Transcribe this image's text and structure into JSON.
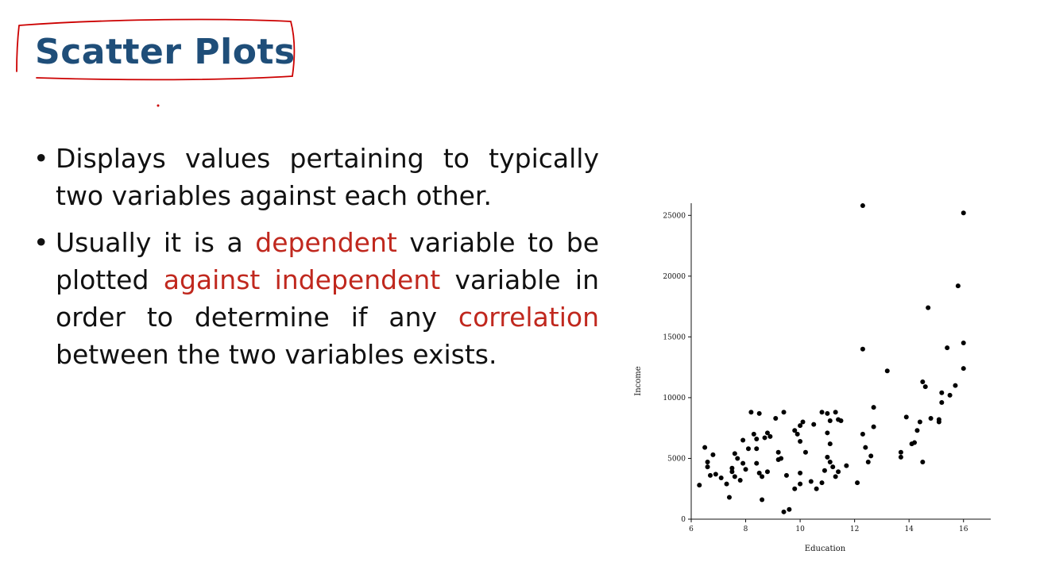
{
  "slide": {
    "title": "Scatter Plots"
  },
  "bullets": {
    "b1": {
      "text": "Displays values pertaining to typically two variables against each other."
    },
    "b2": {
      "t1": "Usually it is a ",
      "h1": "dependent",
      "t2": " variable to be plotted ",
      "h2": "against independent",
      "t3": " variable in order to determine if any ",
      "h3": "correlation",
      "t4": " between the two variables exists."
    }
  },
  "colors": {
    "title": "#1f4e79",
    "highlight": "#c0281e",
    "annotation": "#cc0000",
    "points": "#000000"
  },
  "chart_data": {
    "type": "scatter",
    "xlabel": "Education",
    "ylabel": "Income",
    "xlim": [
      6,
      17
    ],
    "ylim": [
      0,
      26000
    ],
    "xticks": [
      6,
      8,
      10,
      12,
      14,
      16
    ],
    "yticks": [
      0,
      5000,
      10000,
      15000,
      20000,
      25000
    ],
    "grid": false,
    "points": [
      [
        6.3,
        2800
      ],
      [
        6.5,
        5900
      ],
      [
        6.6,
        4700
      ],
      [
        6.6,
        4300
      ],
      [
        6.8,
        5300
      ],
      [
        6.7,
        3600
      ],
      [
        6.9,
        3700
      ],
      [
        7.1,
        3400
      ],
      [
        7.3,
        2900
      ],
      [
        7.4,
        1800
      ],
      [
        7.5,
        4200
      ],
      [
        7.5,
        3900
      ],
      [
        7.6,
        5400
      ],
      [
        7.6,
        3500
      ],
      [
        7.7,
        5000
      ],
      [
        7.8,
        3200
      ],
      [
        7.9,
        6500
      ],
      [
        7.9,
        4600
      ],
      [
        8.0,
        4100
      ],
      [
        8.1,
        5800
      ],
      [
        8.2,
        8800
      ],
      [
        8.3,
        7000
      ],
      [
        8.4,
        6600
      ],
      [
        8.4,
        5800
      ],
      [
        8.4,
        4600
      ],
      [
        8.5,
        8700
      ],
      [
        8.5,
        3800
      ],
      [
        8.6,
        3500
      ],
      [
        8.6,
        1600
      ],
      [
        8.7,
        6700
      ],
      [
        8.8,
        7100
      ],
      [
        8.8,
        3900
      ],
      [
        8.9,
        6800
      ],
      [
        9.1,
        8300
      ],
      [
        9.2,
        5500
      ],
      [
        9.2,
        4900
      ],
      [
        9.3,
        5000
      ],
      [
        9.4,
        8800
      ],
      [
        9.4,
        600
      ],
      [
        9.5,
        3600
      ],
      [
        9.6,
        800
      ],
      [
        9.8,
        7300
      ],
      [
        9.8,
        2500
      ],
      [
        9.9,
        7000
      ],
      [
        10.0,
        6400
      ],
      [
        10.0,
        7700
      ],
      [
        10.0,
        3800
      ],
      [
        10.0,
        2900
      ],
      [
        10.1,
        8000
      ],
      [
        10.2,
        5500
      ],
      [
        10.4,
        3100
      ],
      [
        10.5,
        7800
      ],
      [
        10.6,
        2500
      ],
      [
        10.8,
        8800
      ],
      [
        10.8,
        3000
      ],
      [
        10.9,
        4000
      ],
      [
        11.0,
        8700
      ],
      [
        11.0,
        7100
      ],
      [
        11.0,
        5100
      ],
      [
        11.1,
        8100
      ],
      [
        11.1,
        6200
      ],
      [
        11.1,
        4700
      ],
      [
        11.2,
        4300
      ],
      [
        11.3,
        8800
      ],
      [
        11.3,
        3500
      ],
      [
        11.4,
        8200
      ],
      [
        11.4,
        3900
      ],
      [
        11.5,
        8100
      ],
      [
        11.7,
        4400
      ],
      [
        12.1,
        3000
      ],
      [
        12.3,
        25800
      ],
      [
        12.3,
        14000
      ],
      [
        12.3,
        7000
      ],
      [
        12.4,
        5900
      ],
      [
        12.5,
        4700
      ],
      [
        12.6,
        5200
      ],
      [
        12.7,
        9200
      ],
      [
        12.7,
        7600
      ],
      [
        13.2,
        12200
      ],
      [
        13.7,
        5500
      ],
      [
        13.7,
        5100
      ],
      [
        13.9,
        8400
      ],
      [
        14.1,
        6200
      ],
      [
        14.2,
        6300
      ],
      [
        14.3,
        7300
      ],
      [
        14.4,
        8000
      ],
      [
        14.5,
        11300
      ],
      [
        14.5,
        4700
      ],
      [
        14.6,
        10900
      ],
      [
        14.7,
        17400
      ],
      [
        14.8,
        8300
      ],
      [
        15.1,
        8200
      ],
      [
        15.1,
        8000
      ],
      [
        15.2,
        10400
      ],
      [
        15.2,
        9600
      ],
      [
        15.4,
        14100
      ],
      [
        15.5,
        10200
      ],
      [
        15.7,
        11000
      ],
      [
        15.8,
        19200
      ],
      [
        16.0,
        25200
      ],
      [
        16.0,
        14500
      ],
      [
        16.0,
        12400
      ]
    ]
  }
}
